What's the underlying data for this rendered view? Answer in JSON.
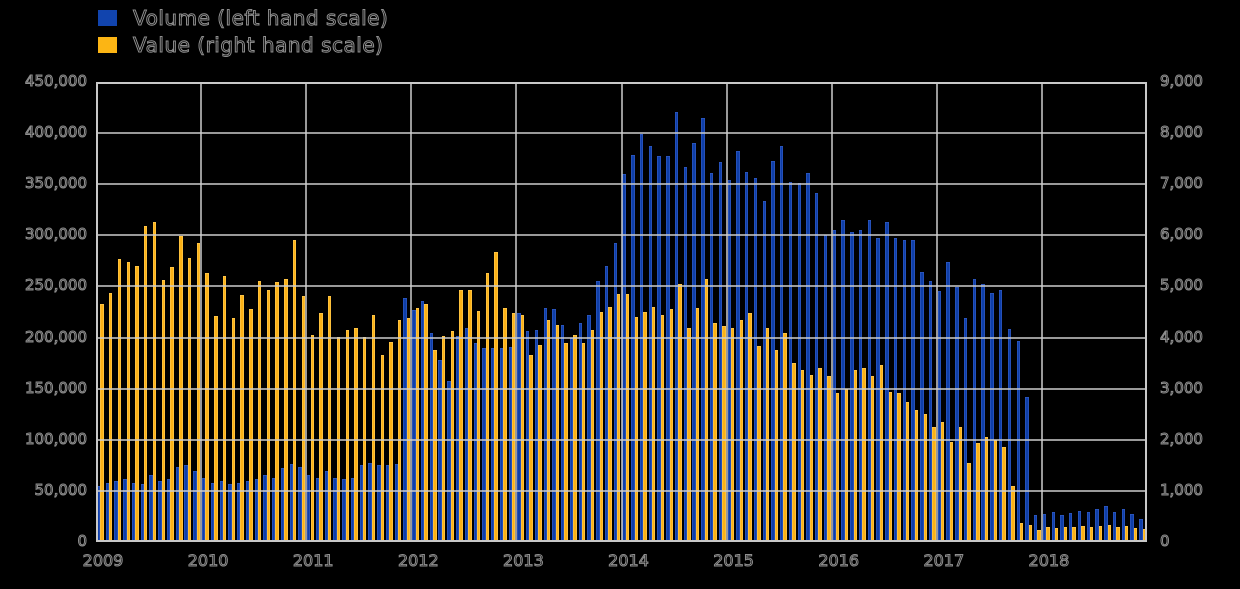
{
  "background_color": "#000000",
  "legend": {
    "items": [
      {
        "label": "Volume (left hand scale)",
        "color": "#1144ae",
        "series": "volume"
      },
      {
        "label": "Value (right hand scale)",
        "color": "#fcb514",
        "series": "value"
      }
    ]
  },
  "chart_data": {
    "type": "bar",
    "title": "",
    "xlabel": "",
    "ylabel_left": "",
    "ylabel_right": "",
    "grid": true,
    "legend_position": "top-left",
    "x_year_labels": [
      "2009",
      "2010",
      "2011",
      "2012",
      "2013",
      "2014",
      "2015",
      "2016",
      "2017",
      "2018"
    ],
    "months_per_year": 12,
    "left_axis": {
      "min": 0,
      "max": 450000,
      "step": 50000,
      "tick_labels": [
        "0",
        "50,000",
        "100,000",
        "150,000",
        "200,000",
        "250,000",
        "300,000",
        "350,000",
        "400,000",
        "450,000"
      ]
    },
    "right_axis": {
      "min": 0,
      "max": 9000,
      "step": 1000,
      "tick_labels": [
        "0",
        "1,000",
        "2,000",
        "3,000",
        "4,000",
        "5,000",
        "6,000",
        "7,000",
        "8,000",
        "9,000"
      ]
    },
    "series": [
      {
        "name": "Volume (left hand scale)",
        "axis": "left",
        "color": "#0e3ea8",
        "edge_color": "#2f58c0",
        "values": [
          55000,
          58000,
          60000,
          62000,
          58000,
          57000,
          66000,
          60000,
          62000,
          73000,
          75000,
          69000,
          63000,
          58000,
          60000,
          57000,
          58000,
          60000,
          62000,
          66000,
          63000,
          72000,
          76000,
          73000,
          66000,
          63000,
          69000,
          63000,
          62000,
          63000,
          75000,
          77000,
          75000,
          75000,
          76000,
          239000,
          227000,
          236000,
          204000,
          178000,
          158000,
          202000,
          209000,
          195000,
          190000,
          190000,
          190000,
          191000,
          224000,
          206000,
          207000,
          229000,
          228000,
          212000,
          200000,
          214000,
          222000,
          255000,
          270000,
          293000,
          360000,
          379000,
          399000,
          387000,
          378000,
          378000,
          421000,
          367000,
          390000,
          415000,
          361000,
          372000,
          354000,
          383000,
          362000,
          356000,
          334000,
          373000,
          387000,
          352000,
          351000,
          361000,
          341000,
          300000,
          305000,
          315000,
          303000,
          305000,
          315000,
          297000,
          313000,
          297000,
          295000,
          295000,
          264000,
          255000,
          246000,
          274000,
          249000,
          219000,
          257000,
          252000,
          244000,
          247000,
          208000,
          197000,
          142000,
          26000,
          27000,
          29000,
          26000,
          28000,
          30000,
          29000,
          32000,
          35000,
          29000,
          32000,
          27000,
          23000
        ]
      },
      {
        "name": "Value (right hand scale)",
        "axis": "right",
        "color": "#fbb116",
        "edge_color": "#ffc84d",
        "values": [
          4650,
          4880,
          5530,
          5480,
          5400,
          6190,
          6270,
          5120,
          5390,
          5980,
          5550,
          5850,
          5270,
          4420,
          5200,
          4390,
          4840,
          4550,
          5110,
          4940,
          5090,
          5150,
          5910,
          4810,
          4060,
          4480,
          4820,
          4020,
          4140,
          4190,
          4020,
          4450,
          3650,
          3920,
          4350,
          4390,
          4580,
          4650,
          3760,
          4030,
          4120,
          4940,
          4940,
          4520,
          5270,
          5670,
          4580,
          4480,
          4450,
          3650,
          3850,
          4350,
          4250,
          3900,
          4050,
          3900,
          4150,
          4500,
          4600,
          4850,
          4850,
          4400,
          4500,
          4600,
          4450,
          4550,
          5040,
          4190,
          4580,
          5140,
          4290,
          4220,
          4190,
          4350,
          4480,
          3830,
          4190,
          3760,
          4090,
          3500,
          3370,
          3270,
          3400,
          3240,
          2910,
          2990,
          3370,
          3400,
          3240,
          3470,
          2930,
          2910,
          2740,
          2580,
          2510,
          2250,
          2350,
          1950,
          2250,
          1550,
          1930,
          2050,
          2000,
          1850,
          1100,
          365,
          330,
          230,
          300,
          280,
          300,
          290,
          310,
          300,
          320,
          330,
          290,
          310,
          280,
          260
        ]
      }
    ]
  }
}
